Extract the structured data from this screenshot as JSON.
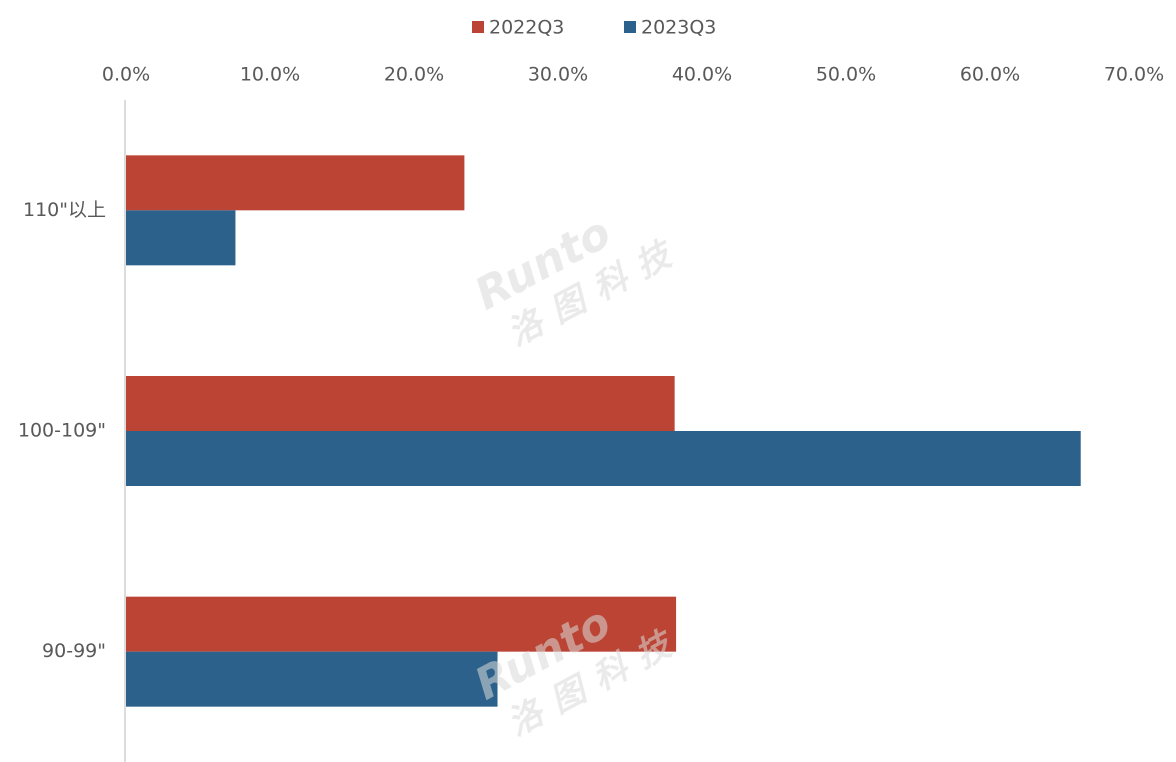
{
  "chart_data": {
    "type": "hbar",
    "categories": [
      "110\"以上",
      "100-109\"",
      "90-99\""
    ],
    "series": [
      {
        "name": "2022Q3",
        "color": "#bb4434",
        "values": [
          23.5,
          38.1,
          38.2
        ]
      },
      {
        "name": "2023Q3",
        "color": "#2b618b",
        "values": [
          7.6,
          66.3,
          25.8
        ]
      }
    ],
    "xlim": [
      0,
      70
    ],
    "xticks": [
      {
        "value": 0,
        "label": "0.0%"
      },
      {
        "value": 10,
        "label": "10.0%"
      },
      {
        "value": 20,
        "label": "20.0%"
      },
      {
        "value": 30,
        "label": "30.0%"
      },
      {
        "value": 40,
        "label": "40.0%"
      },
      {
        "value": 50,
        "label": "50.0%"
      },
      {
        "value": 60,
        "label": "60.0%"
      },
      {
        "value": 70,
        "label": "70.0%"
      }
    ],
    "watermark": [
      "Runto",
      "洛图科技"
    ],
    "legend": "top"
  }
}
